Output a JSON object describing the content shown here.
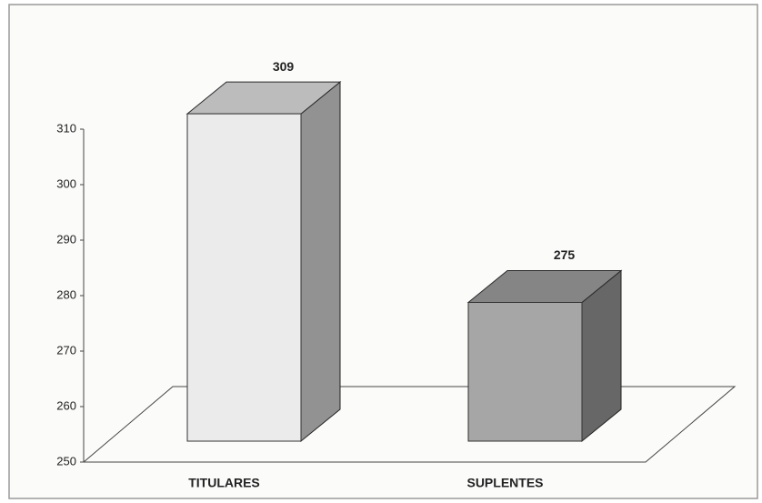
{
  "chart_data": {
    "type": "bar3d",
    "categories": [
      "TITULARES",
      "SUPLENTES"
    ],
    "values": [
      309,
      275
    ],
    "colors": [
      "#ebebeb",
      "#a6a6a6"
    ],
    "ylim": [
      250,
      310
    ],
    "yticks": [
      250,
      260,
      270,
      280,
      290,
      300,
      310
    ]
  }
}
